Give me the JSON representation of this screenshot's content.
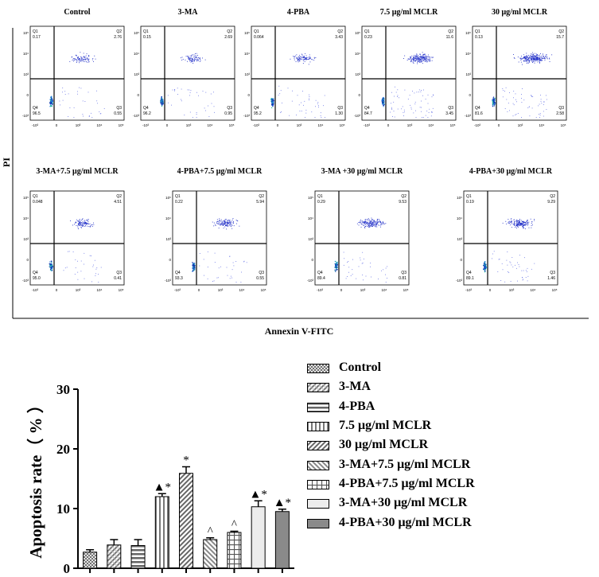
{
  "flow_panel": {
    "y_axis_label": "PI",
    "x_axis_label": "Annexin V-FITC",
    "x_tick_labels": [
      "-10³",
      "0",
      "10³",
      "10⁴",
      "10⁵"
    ],
    "y_tick_labels": [
      "10⁵",
      "10⁴",
      "10³",
      "0",
      "-10³"
    ],
    "plots": [
      {
        "title": "Control",
        "q1": "0.17",
        "q2": "2.76",
        "q3": "0.55",
        "q4": "96.5"
      },
      {
        "title": "3-MA",
        "q1": "0.15",
        "q2": "2.69",
        "q3": "0.95",
        "q4": "96.2"
      },
      {
        "title": "4-PBA",
        "q1": "0.064",
        "q2": "3.43",
        "q3": "1.30",
        "q4": "95.2"
      },
      {
        "title": "7.5 μg/ml MCLR",
        "q1": "0.23",
        "q2": "11.6",
        "q3": "3.45",
        "q4": "84.7"
      },
      {
        "title": "30 μg/ml MCLR",
        "q1": "0.13",
        "q2": "15.7",
        "q3": "2.58",
        "q4": "81.6"
      },
      {
        "title": "3-MA+7.5 μg/ml MCLR",
        "q1": "0.048",
        "q2": "4.51",
        "q3": "0.41",
        "q4": "95.0"
      },
      {
        "title": "4-PBA+7.5 μg/ml MCLR",
        "q1": "0.22",
        "q2": "5.94",
        "q3": "0.55",
        "q4": "93.3"
      },
      {
        "title": "3-MA +30 μg/ml MCLR",
        "q1": "0.29",
        "q2": "9.53",
        "q3": "0.81",
        "q4": "89.4"
      },
      {
        "title": "4-PBA+30 μg/ml MCLR",
        "q1": "0.19",
        "q2": "9.29",
        "q3": "1.46",
        "q4": "89.1"
      }
    ]
  },
  "chart_data": {
    "type": "bar",
    "ylabel": "Apoptosis rate（ % ）",
    "xlabel": "",
    "ylim": [
      0,
      30
    ],
    "yticks": [
      0,
      10,
      20,
      30
    ],
    "grid": false,
    "legend_position": "right",
    "categories": [
      "Control",
      "3-MA",
      "4-PBA",
      "7.5 μg/ml MCLR",
      "30 μg/ml MCLR",
      "3-MA+7.5 μg/ml MCLR",
      "4-PBA+7.5 μg/ml MCLR",
      "3-MA+30 μg/ml MCLR",
      "4-PBA+30 μg/ml MCLR"
    ],
    "values": [
      2.7,
      3.9,
      3.8,
      12.0,
      15.9,
      4.8,
      6.0,
      10.3,
      9.5
    ],
    "errors": [
      0.4,
      0.9,
      1.0,
      0.5,
      1.1,
      0.3,
      0.2,
      1.0,
      0.4
    ],
    "annotations": [
      "",
      "",
      "",
      "▲*",
      "*",
      "^",
      "^",
      "▲*",
      "▲*"
    ],
    "patterns": [
      "crosshatch",
      "diag-dense",
      "h-lines",
      "v-lines",
      "diag-up",
      "diag-down",
      "grid",
      "light-solid",
      "dark-solid"
    ]
  }
}
